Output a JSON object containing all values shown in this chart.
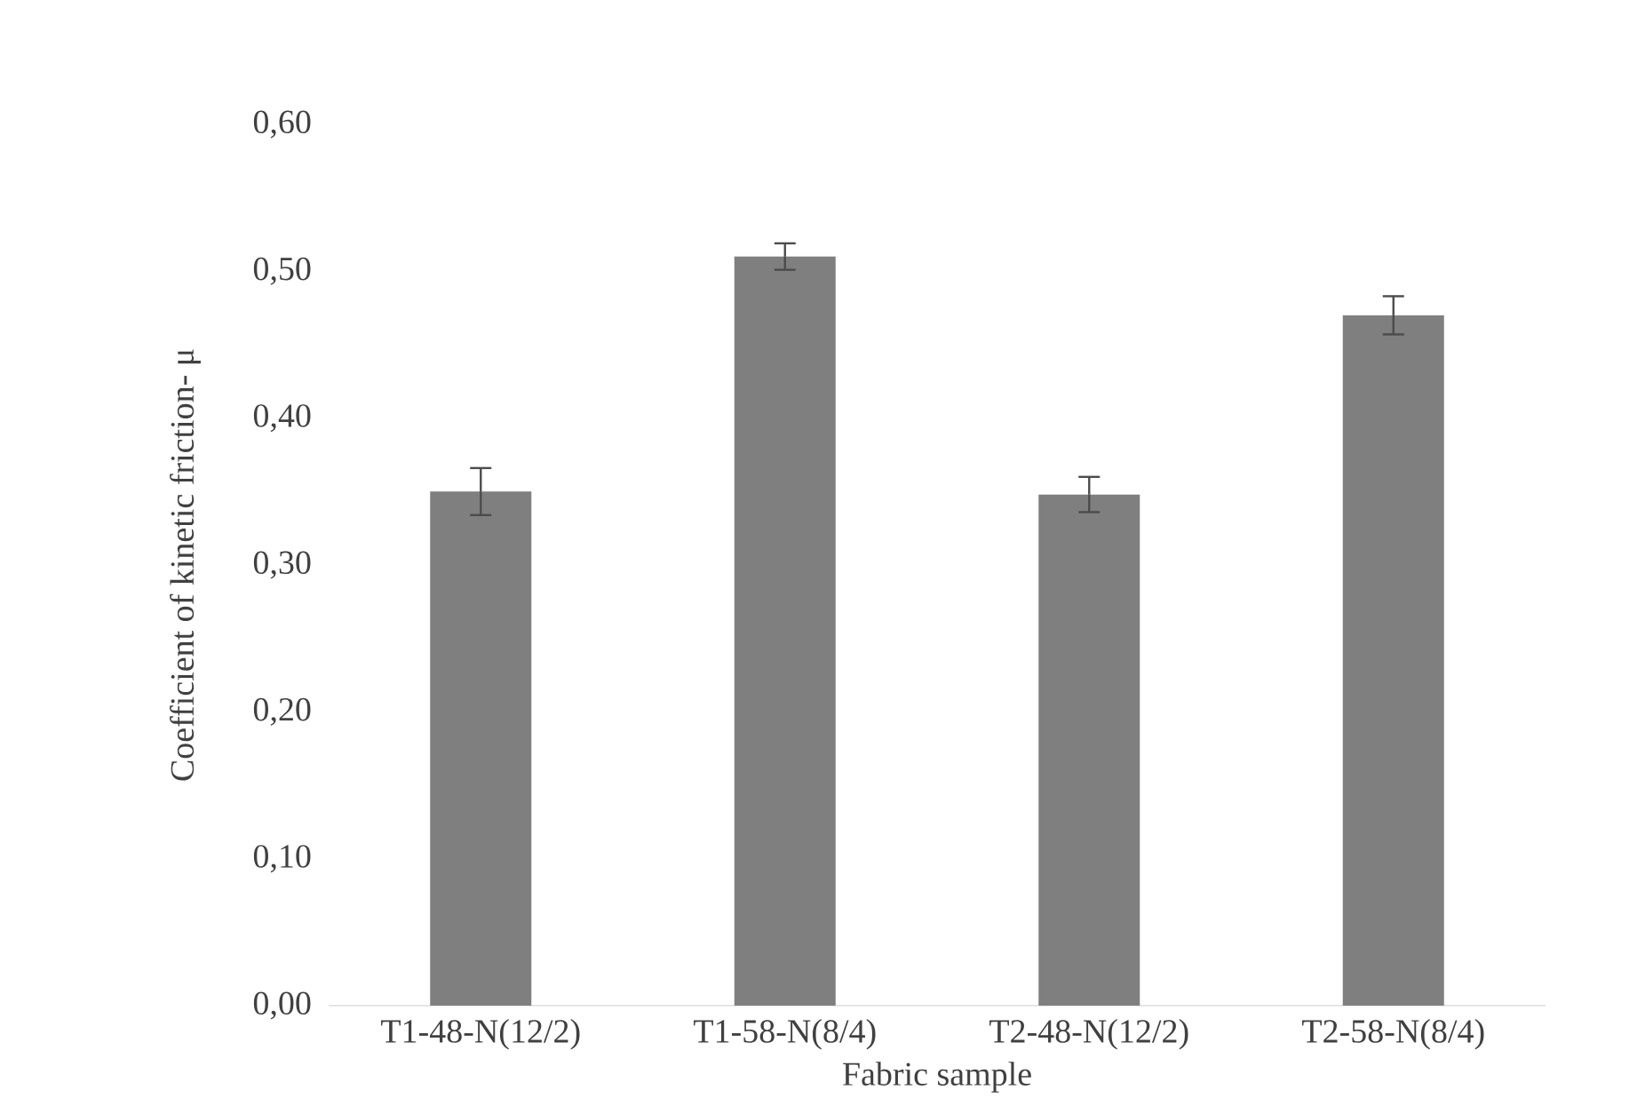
{
  "chart_data": {
    "type": "bar",
    "xlabel": "Fabric sample",
    "ylabel": "Coefficient  of kinetic  friction-  μ",
    "categories": [
      "T1-48-N(12/2)",
      "T1-58-N(8/4)",
      "T2-48-N(12/2)",
      "T2-58-N(8/4)"
    ],
    "values": [
      0.35,
      0.51,
      0.348,
      0.47
    ],
    "errors": [
      0.016,
      0.009,
      0.012,
      0.013
    ],
    "color": "#7f7f7f",
    "ylim": [
      0,
      0.6
    ],
    "yticks": [
      {
        "value": 0,
        "label": "0,00"
      },
      {
        "value": 0.1,
        "label": "0,10"
      },
      {
        "value": 0.2,
        "label": "0,20"
      },
      {
        "value": 0.3,
        "label": "0,30"
      },
      {
        "value": 0.4,
        "label": "0,40"
      },
      {
        "value": 0.5,
        "label": "0,50"
      },
      {
        "value": 0.6,
        "label": "0,60"
      }
    ],
    "grid": false
  }
}
